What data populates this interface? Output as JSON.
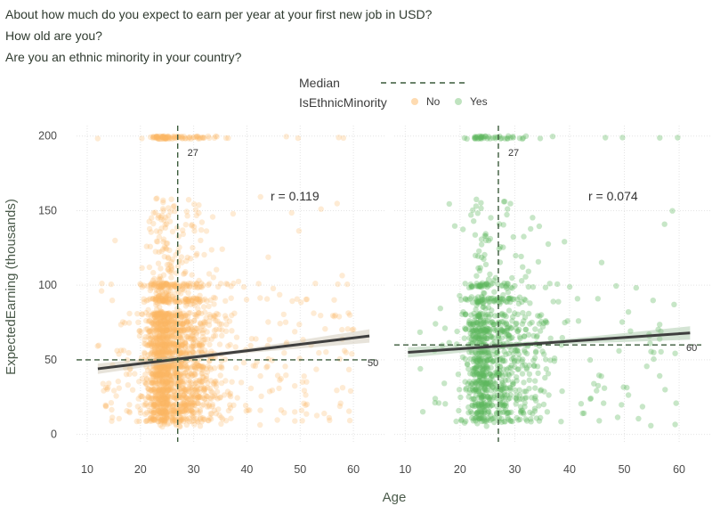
{
  "titles": [
    "About how much do you expect to earn per year at your first new job in USD?",
    "How old are you?",
    "Are you an ethnic minority in your country?"
  ],
  "chart_data": {
    "type": "scatter",
    "xlabel": "Age",
    "ylabel": "ExpectedEarning (thousands)",
    "xlim": [
      8,
      66
    ],
    "ylim": [
      -5,
      207
    ],
    "x_ticks": [
      10,
      20,
      30,
      40,
      50,
      60
    ],
    "y_ticks": [
      0,
      50,
      100,
      150,
      200
    ],
    "grid": true,
    "legend": {
      "position": "top",
      "median_label": "Median",
      "group_title": "IsEthnicMinority",
      "items": [
        {
          "label": "No",
          "color": "#fdb863"
        },
        {
          "label": "Yes",
          "color": "#5fb85f"
        }
      ]
    },
    "panels": [
      {
        "group": "No",
        "color": "#fdb863",
        "median_age": 27,
        "median_age_label": "27",
        "median_earning": 50,
        "median_earning_label": "50",
        "correlation_label": "r = 0.119",
        "trend": {
          "x": [
            12,
            63
          ],
          "y": [
            44,
            66
          ]
        }
      },
      {
        "group": "Yes",
        "color": "#5fb85f",
        "median_age": 27,
        "median_age_label": "27",
        "median_earning": 60,
        "median_earning_label": "60",
        "correlation_label": "r = 0.074",
        "trend": {
          "x": [
            10.5,
            62
          ],
          "y": [
            55,
            68
          ]
        }
      }
    ]
  }
}
